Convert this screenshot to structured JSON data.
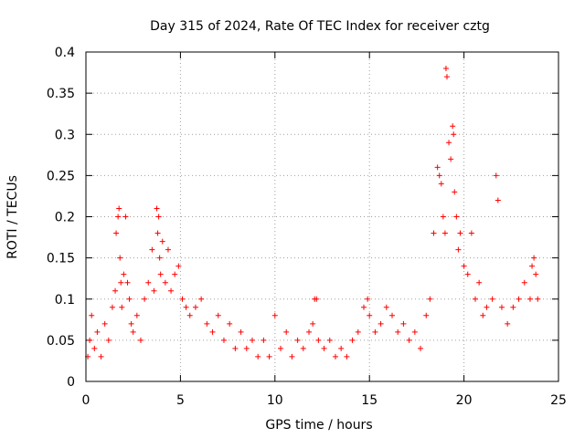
{
  "chart_data": {
    "type": "scatter",
    "title": "Day 315 of 2024, Rate Of TEC Index for receiver cztg",
    "xlabel": "GPS time / hours",
    "ylabel": "ROTI / TECUs",
    "xlim": [
      0,
      25
    ],
    "ylim": [
      0,
      0.4
    ],
    "x_ticks": [
      0,
      5,
      10,
      15,
      20,
      25
    ],
    "x_tick_labels": [
      "0",
      "5",
      "10",
      "15",
      "20",
      "25"
    ],
    "y_ticks": [
      0,
      0.05,
      0.1,
      0.15,
      0.2,
      0.25,
      0.3,
      0.35,
      0.4
    ],
    "y_tick_labels": [
      "0",
      "0.05",
      "0.1",
      "0.15",
      "0.2",
      "0.25",
      "0.3",
      "0.35",
      "0.4"
    ],
    "grid": true,
    "marker": "+",
    "color": "#ff0000",
    "series": [
      {
        "name": "ROTI",
        "x": [
          0.1,
          0.2,
          0.3,
          0.45,
          0.6,
          0.8,
          1.0,
          1.2,
          1.4,
          1.55,
          1.6,
          1.7,
          1.75,
          1.8,
          1.85,
          1.9,
          2.0,
          2.1,
          2.2,
          2.3,
          2.4,
          2.5,
          2.7,
          2.9,
          3.1,
          3.3,
          3.5,
          3.6,
          3.75,
          3.8,
          3.85,
          3.9,
          3.95,
          4.05,
          4.2,
          4.35,
          4.5,
          4.7,
          4.9,
          5.1,
          5.3,
          5.5,
          5.8,
          6.1,
          6.4,
          6.7,
          7.0,
          7.3,
          7.6,
          7.9,
          8.2,
          8.5,
          8.8,
          9.1,
          9.4,
          9.7,
          10.0,
          10.3,
          10.6,
          10.9,
          11.2,
          11.5,
          11.8,
          12.0,
          12.1,
          12.2,
          12.3,
          12.6,
          12.9,
          13.2,
          13.5,
          13.8,
          14.1,
          14.4,
          14.7,
          14.9,
          15.0,
          15.3,
          15.6,
          15.9,
          16.2,
          16.5,
          16.8,
          17.1,
          17.4,
          17.7,
          18.0,
          18.2,
          18.4,
          18.6,
          18.7,
          18.8,
          18.9,
          19.0,
          19.05,
          19.1,
          19.2,
          19.3,
          19.4,
          19.45,
          19.5,
          19.6,
          19.7,
          19.8,
          20.0,
          20.2,
          20.4,
          20.6,
          20.8,
          21.0,
          21.2,
          21.5,
          21.7,
          21.8,
          22.0,
          22.3,
          22.6,
          22.9,
          23.2,
          23.5,
          23.6,
          23.7,
          23.8,
          23.9
        ],
        "y": [
          0.03,
          0.05,
          0.08,
          0.04,
          0.06,
          0.03,
          0.07,
          0.05,
          0.09,
          0.11,
          0.18,
          0.2,
          0.21,
          0.15,
          0.12,
          0.09,
          0.13,
          0.2,
          0.12,
          0.1,
          0.07,
          0.06,
          0.08,
          0.05,
          0.1,
          0.12,
          0.16,
          0.11,
          0.21,
          0.18,
          0.2,
          0.15,
          0.13,
          0.17,
          0.12,
          0.16,
          0.11,
          0.13,
          0.14,
          0.1,
          0.09,
          0.08,
          0.09,
          0.1,
          0.07,
          0.06,
          0.08,
          0.05,
          0.07,
          0.04,
          0.06,
          0.04,
          0.05,
          0.03,
          0.05,
          0.03,
          0.08,
          0.04,
          0.06,
          0.03,
          0.05,
          0.04,
          0.06,
          0.07,
          0.1,
          0.1,
          0.05,
          0.04,
          0.05,
          0.03,
          0.04,
          0.03,
          0.05,
          0.06,
          0.09,
          0.1,
          0.08,
          0.06,
          0.07,
          0.09,
          0.08,
          0.06,
          0.07,
          0.05,
          0.06,
          0.04,
          0.08,
          0.1,
          0.18,
          0.26,
          0.25,
          0.24,
          0.2,
          0.18,
          0.38,
          0.37,
          0.29,
          0.27,
          0.31,
          0.3,
          0.23,
          0.2,
          0.16,
          0.18,
          0.14,
          0.13,
          0.18,
          0.1,
          0.12,
          0.08,
          0.09,
          0.1,
          0.25,
          0.22,
          0.09,
          0.07,
          0.09,
          0.1,
          0.12,
          0.1,
          0.14,
          0.15,
          0.13,
          0.1
        ]
      }
    ]
  }
}
